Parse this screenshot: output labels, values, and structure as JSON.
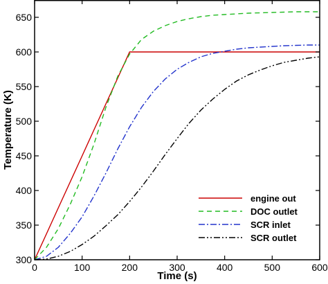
{
  "chart_data": {
    "type": "line",
    "title": "",
    "xlabel": "Time (s)",
    "ylabel": "Temperature (K)",
    "xlim": [
      0,
      600
    ],
    "ylim": [
      300,
      675
    ],
    "xticks": [
      0,
      100,
      200,
      300,
      400,
      500,
      600
    ],
    "yticks": [
      300,
      350,
      400,
      450,
      500,
      550,
      600,
      650
    ],
    "grid": false,
    "legend_position": "bottom-right",
    "x": [
      0,
      25,
      50,
      75,
      100,
      125,
      150,
      175,
      200,
      225,
      250,
      275,
      300,
      325,
      350,
      375,
      400,
      425,
      450,
      475,
      500,
      525,
      550,
      575,
      600
    ],
    "series": [
      {
        "name": "engine out",
        "color": "#cc0000",
        "dash": "solid",
        "values": [
          300,
          337.5,
          375,
          412.5,
          450,
          487.5,
          525,
          562.5,
          600,
          600,
          600,
          600,
          600,
          600,
          600,
          600,
          600,
          600,
          600,
          600,
          600,
          600,
          600,
          600,
          600
        ]
      },
      {
        "name": "DOC outlet",
        "color": "#22bb22",
        "dash": "dashed",
        "values": [
          300,
          318,
          345,
          380,
          420,
          467,
          520,
          565,
          597,
          618,
          630,
          638,
          644,
          648,
          651,
          653,
          654,
          655,
          656,
          656.5,
          657,
          657.5,
          658,
          658,
          658
        ]
      },
      {
        "name": "SCR inlet",
        "color": "#2233cc",
        "dash": "dashdot",
        "values": [
          300,
          305,
          318,
          338,
          362,
          392,
          425,
          460,
          492,
          520,
          543,
          561,
          575,
          585,
          593,
          598,
          601,
          604,
          606,
          607,
          608,
          609,
          609.5,
          610,
          610
        ]
      },
      {
        "name": "SCR outlet",
        "color": "#000000",
        "dash": "dashdotdot",
        "values": [
          300,
          301,
          305,
          312,
          322,
          334,
          349,
          365,
          384,
          405,
          428,
          452,
          475,
          497,
          516,
          532,
          546,
          558,
          567,
          574,
          580,
          585,
          588,
          591,
          593
        ]
      }
    ]
  }
}
